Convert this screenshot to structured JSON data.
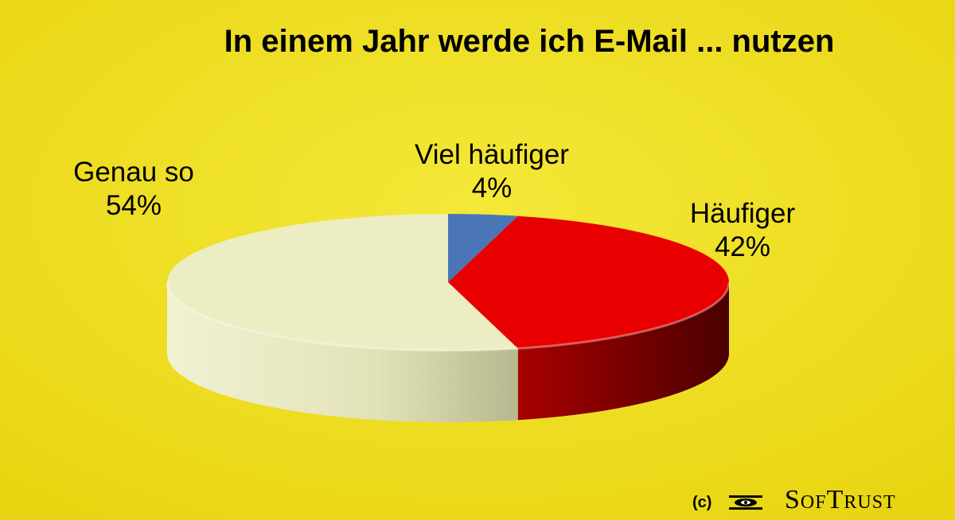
{
  "colors": {
    "background": "#f0e01e",
    "viel_haeufiger": "#4a76b8",
    "haeufiger": "#e80000",
    "genau_so": "#ededc4"
  },
  "chart_data": {
    "type": "pie",
    "title": "In einem Jahr werde ich E-Mail ... nutzen",
    "slices": [
      {
        "label": "Viel häufiger",
        "value": 4,
        "value_label": "4%",
        "color": "#4a76b8"
      },
      {
        "label": "Häufiger",
        "value": 42,
        "value_label": "42%",
        "color": "#e80000"
      },
      {
        "label": "Genau so",
        "value": 54,
        "value_label": "54%",
        "color": "#ededc4"
      }
    ],
    "legend": "none",
    "style": "3d"
  },
  "footer": {
    "copyright": "(c)",
    "brand": "SofTrust",
    "logo_icon": "eye-logo-icon"
  }
}
